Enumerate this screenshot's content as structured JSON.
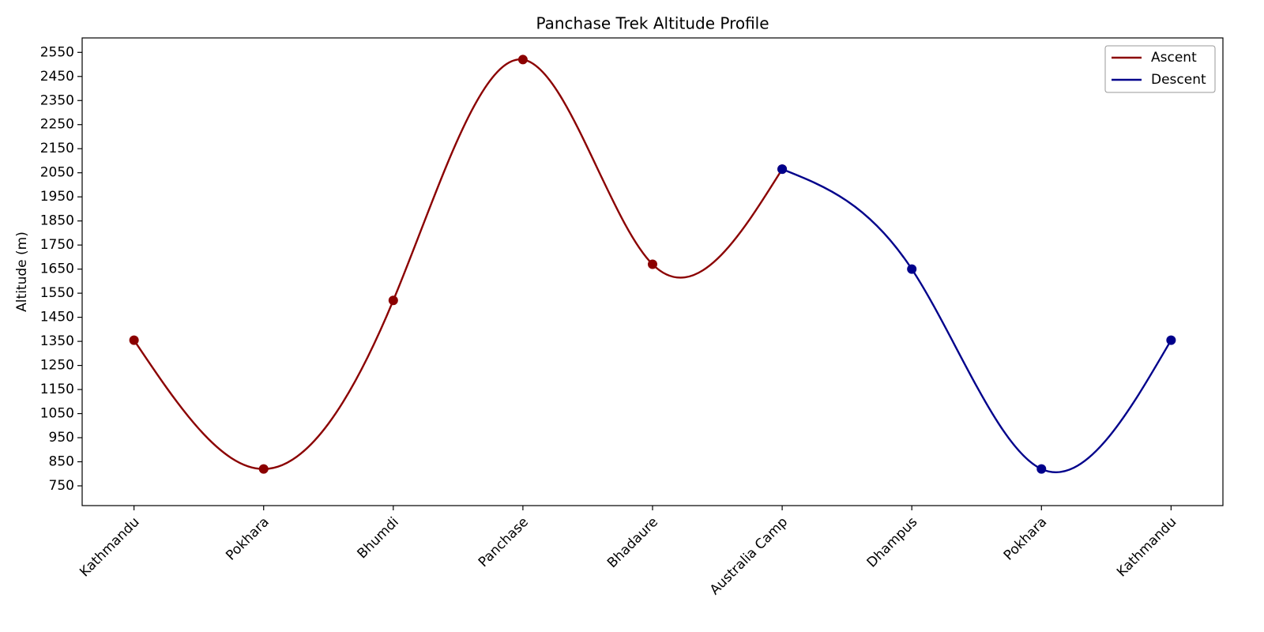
{
  "chart_data": {
    "type": "line",
    "title": "Panchase Trek Altitude Profile",
    "ylabel": "Altitude (m)",
    "categories": [
      "Kathmandu",
      "Pokhara",
      "Bhumdi",
      "Panchase",
      "Bhadaure",
      "Australia Camp",
      "Dhampus",
      "Pokhara",
      "Kathmandu"
    ],
    "series": [
      {
        "name": "Ascent",
        "color": "#8b0000",
        "values": [
          1355,
          820,
          1520,
          2520,
          1670,
          2065,
          null,
          null,
          null
        ]
      },
      {
        "name": "Descent",
        "color": "#00008b",
        "values": [
          null,
          null,
          null,
          null,
          null,
          2065,
          1650,
          820,
          1355
        ]
      }
    ],
    "ylim": [
      668,
      2610
    ],
    "yticks": [
      750,
      850,
      950,
      1050,
      1150,
      1250,
      1350,
      1450,
      1550,
      1650,
      1750,
      1850,
      1950,
      2050,
      2150,
      2250,
      2350,
      2450,
      2550
    ],
    "grid": false,
    "smooth": true,
    "legend": "upper right"
  }
}
